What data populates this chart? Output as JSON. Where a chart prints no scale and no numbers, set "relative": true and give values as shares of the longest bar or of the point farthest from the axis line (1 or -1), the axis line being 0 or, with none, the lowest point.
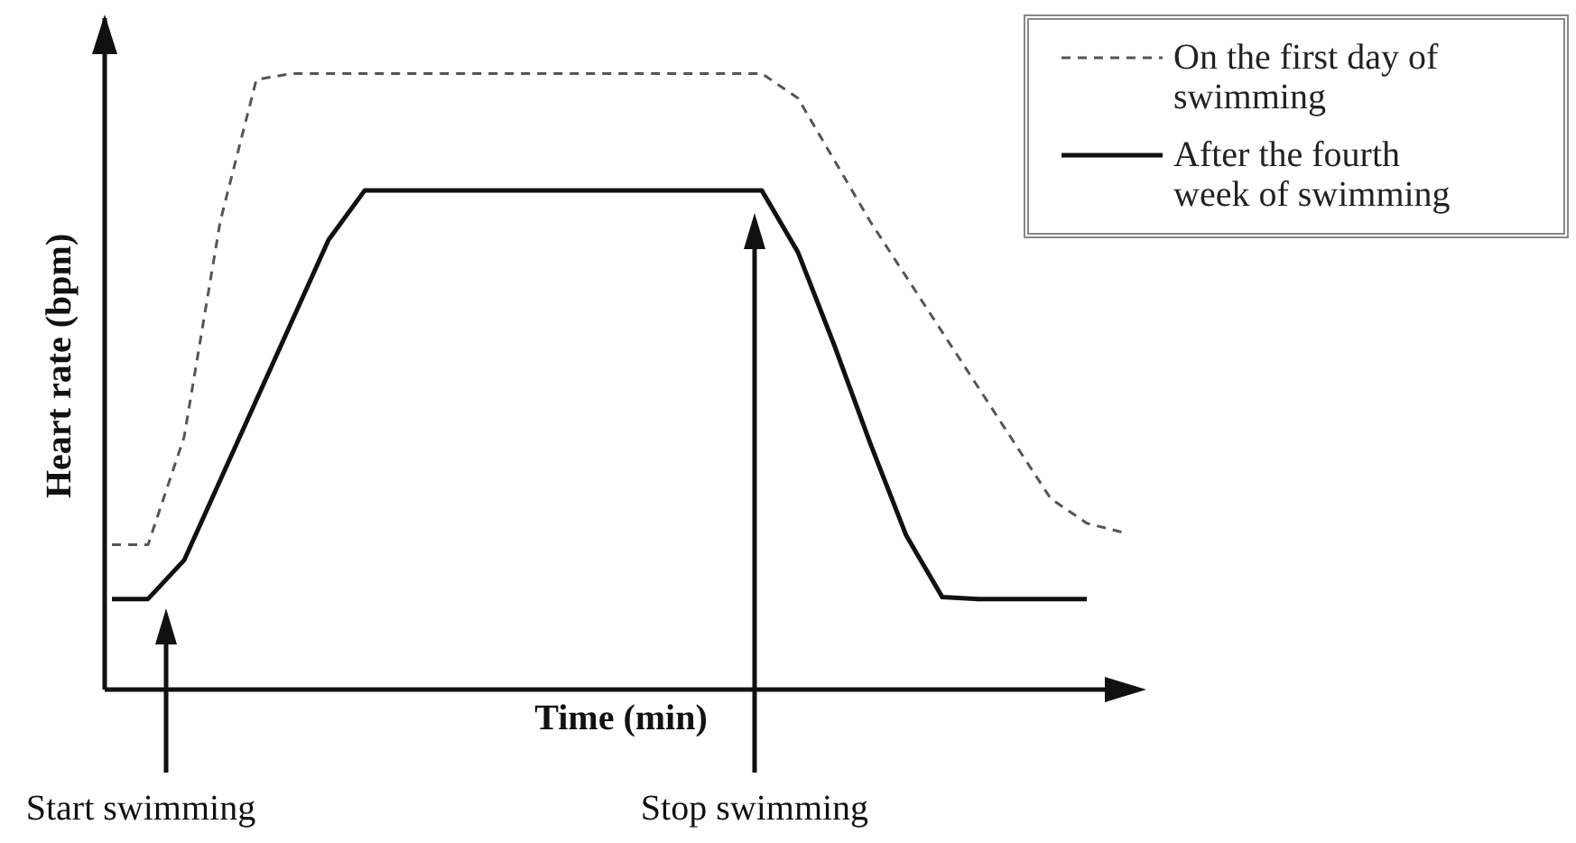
{
  "chart_data": {
    "type": "line",
    "xlabel": "Time (min)",
    "ylabel": "Heart rate (bpm)",
    "relative": true,
    "legend": "top right",
    "marker": "none",
    "grid": false,
    "categories": [
      null,
      null,
      null,
      null,
      null,
      null,
      null,
      null,
      null,
      null,
      null,
      null,
      null,
      null,
      null,
      null,
      null,
      null,
      null,
      null,
      null,
      null,
      null,
      null,
      null,
      null,
      null,
      null,
      null
    ],
    "series": [
      {
        "name": "On the first day of swimming",
        "color": "#555555",
        "line_style": "dashed",
        "values": [
          0.235,
          0.235,
          0.41,
          0.76,
          0.99,
          1,
          1,
          1,
          1,
          1,
          1,
          1,
          1,
          1,
          1,
          1,
          1,
          1,
          1,
          0.96,
          0.86,
          0.76,
          0.67,
          0.58,
          0.49,
          0.4,
          0.31,
          0.27,
          0.255
        ]
      },
      {
        "name": "After the fourth week of swimming",
        "color": "#111111",
        "line_style": "solid",
        "values": [
          0.147,
          0.147,
          0.21,
          0.34,
          0.47,
          0.6,
          0.73,
          0.81,
          0.81,
          0.81,
          0.81,
          0.81,
          0.81,
          0.81,
          0.81,
          0.81,
          0.81,
          0.81,
          0.81,
          0.71,
          0.56,
          0.4,
          0.25,
          0.15,
          0.147,
          0.147,
          0.147,
          0.147,
          null
        ]
      }
    ],
    "annotations": [
      "Start swimming",
      "Stop swimming"
    ]
  }
}
